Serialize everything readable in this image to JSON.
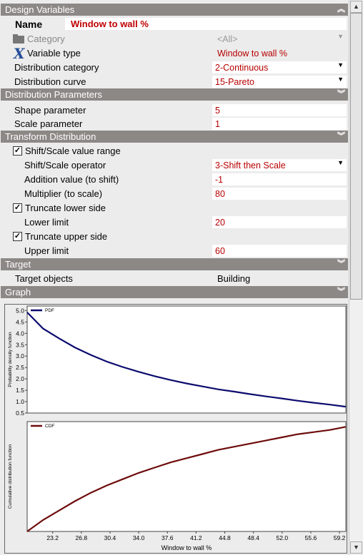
{
  "sections": {
    "design_variables": "Design Variables",
    "distribution_parameters": "Distribution Parameters",
    "transform_distribution": "Transform Distribution",
    "target": "Target",
    "graph": "Graph"
  },
  "design_variables": {
    "name_label": "Name",
    "name_value": "Window to wall %",
    "category_label": "Category",
    "category_value": "<All>",
    "variable_type_label": "Variable type",
    "variable_type_value": "Window to wall %",
    "distribution_category_label": "Distribution category",
    "distribution_category_value": "2-Continuous",
    "distribution_curve_label": "Distribution curve",
    "distribution_curve_value": "15-Pareto"
  },
  "distribution_parameters": {
    "shape_label": "Shape parameter",
    "shape_value": "5",
    "scale_label": "Scale parameter",
    "scale_value": "1"
  },
  "transform": {
    "shift_scale_label": "Shift/Scale value range",
    "shift_scale_checked": true,
    "operator_label": "Shift/Scale operator",
    "operator_value": "3-Shift then Scale",
    "addition_label": "Addition value (to shift)",
    "addition_value": "-1",
    "multiplier_label": "Multiplier (to scale)",
    "multiplier_value": "80",
    "truncate_lower_label": "Truncate lower side",
    "truncate_lower_checked": true,
    "lower_limit_label": "Lower limit",
    "lower_limit_value": "20",
    "truncate_upper_label": "Truncate upper side",
    "truncate_upper_checked": true,
    "upper_limit_label": "Upper limit",
    "upper_limit_value": "60"
  },
  "target": {
    "objects_label": "Target objects",
    "objects_value": "Building"
  },
  "icons": {
    "category": "folder-icon",
    "variable_type": "x-variable-icon",
    "collapse": "double-chevron-up-icon",
    "expand": "double-chevron-down-icon",
    "dropdown": "triangle-down-icon"
  },
  "colors": {
    "header_bg": "#8c8886",
    "value_text": "#b80000",
    "pdf_line": "#0b0b6e",
    "cdf_line": "#6e0b0b"
  },
  "chart_data": [
    {
      "type": "line",
      "title": "",
      "legend": "PDF",
      "legend_placement": "top-left",
      "ylabel": "Probability density function",
      "xlabel": "",
      "xlim": [
        20,
        60
      ],
      "ylim": [
        0.5,
        5.2
      ],
      "yticks": [
        "0.5",
        "1.0",
        "1.5",
        "2.0",
        "2.5",
        "3.0",
        "3.5",
        "4.0",
        "4.5",
        "5.0"
      ],
      "grid": false,
      "x": [
        20,
        22,
        24,
        26,
        28,
        30,
        32,
        34,
        36,
        38,
        40,
        42,
        44,
        46,
        48,
        50,
        52,
        54,
        56,
        58,
        60
      ],
      "values": [
        4.92,
        4.21,
        3.78,
        3.38,
        3.05,
        2.76,
        2.52,
        2.31,
        2.12,
        1.95,
        1.8,
        1.67,
        1.54,
        1.44,
        1.33,
        1.23,
        1.14,
        1.04,
        0.95,
        0.87,
        0.78
      ],
      "series": [
        {
          "name": "PDF",
          "color": "#0b0b6e"
        }
      ]
    },
    {
      "type": "line",
      "title": "",
      "legend": "CDF",
      "legend_placement": "top-left",
      "ylabel": "Cumulative distribution function",
      "xlabel": "Window to wall %",
      "xlim": [
        20,
        60
      ],
      "ylim": [
        0,
        1.05
      ],
      "xticks": [
        "23.2",
        "26.8",
        "30.4",
        "34.0",
        "37.6",
        "41.2",
        "44.8",
        "48.4",
        "52.0",
        "55.6",
        "59.2"
      ],
      "grid": false,
      "x": [
        20,
        22,
        24,
        26,
        28,
        30,
        32,
        34,
        36,
        38,
        40,
        42,
        44,
        46,
        48,
        50,
        52,
        54,
        56,
        58,
        60
      ],
      "values": [
        0.0,
        0.11,
        0.2,
        0.29,
        0.37,
        0.44,
        0.5,
        0.56,
        0.61,
        0.66,
        0.7,
        0.74,
        0.78,
        0.81,
        0.84,
        0.87,
        0.9,
        0.93,
        0.95,
        0.97,
        1.0
      ],
      "series": [
        {
          "name": "CDF",
          "color": "#6e0b0b"
        }
      ]
    }
  ]
}
